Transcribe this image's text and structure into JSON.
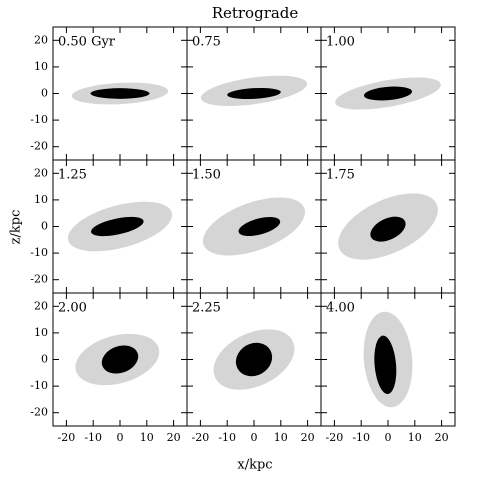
{
  "title": "Retrograde",
  "xlabel": "x/kpc",
  "ylabel": "z/kpc",
  "chart_data": [
    {
      "type": "scatter",
      "label": "0.50 Gyr",
      "xlim": [
        -25,
        25
      ],
      "ylim": [
        -25,
        25
      ],
      "xticks": [
        -20,
        -10,
        0,
        10,
        20
      ],
      "yticks": [
        -20,
        -10,
        0,
        10,
        20
      ],
      "halo": {
        "x": 0,
        "z": 0,
        "rx": 18,
        "rz": 4,
        "angle": 3
      },
      "core": {
        "x": 0,
        "z": 0,
        "rx": 11,
        "rz": 2,
        "angle": 0
      }
    },
    {
      "type": "scatter",
      "label": "0.75",
      "xlim": [
        -25,
        25
      ],
      "ylim": [
        -25,
        25
      ],
      "xticks": [
        -20,
        -10,
        0,
        10,
        20
      ],
      "yticks": [
        -20,
        -10,
        0,
        10,
        20
      ],
      "halo": {
        "x": 0,
        "z": 1,
        "rx": 20,
        "rz": 5,
        "angle": 8
      },
      "core": {
        "x": 0,
        "z": 0,
        "rx": 10,
        "rz": 2,
        "angle": 3
      }
    },
    {
      "type": "scatter",
      "label": "1.00",
      "xlim": [
        -25,
        25
      ],
      "ylim": [
        -25,
        25
      ],
      "xticks": [
        -20,
        -10,
        0,
        10,
        20
      ],
      "yticks": [
        -20,
        -10,
        0,
        10,
        20
      ],
      "halo": {
        "x": 0,
        "z": 0,
        "rx": 20,
        "rz": 5,
        "angle": 10
      },
      "core": {
        "x": 0,
        "z": 0,
        "rx": 9,
        "rz": 2.5,
        "angle": 5
      }
    },
    {
      "type": "scatter",
      "label": "1.25",
      "xlim": [
        -25,
        25
      ],
      "ylim": [
        -25,
        25
      ],
      "xticks": [
        -20,
        -10,
        0,
        10,
        20
      ],
      "yticks": [
        -20,
        -10,
        0,
        10,
        20
      ],
      "halo": {
        "x": 0,
        "z": 0,
        "rx": 20,
        "rz": 8,
        "angle": 15
      },
      "core": {
        "x": -1,
        "z": 0,
        "rx": 10,
        "rz": 3,
        "angle": 12
      }
    },
    {
      "type": "scatter",
      "label": "1.50",
      "xlim": [
        -25,
        25
      ],
      "ylim": [
        -25,
        25
      ],
      "xticks": [
        -20,
        -10,
        0,
        10,
        20
      ],
      "yticks": [
        -20,
        -10,
        0,
        10,
        20
      ],
      "halo": {
        "x": 0,
        "z": 0,
        "rx": 20,
        "rz": 9,
        "angle": 20
      },
      "core": {
        "x": 2,
        "z": 0,
        "rx": 8,
        "rz": 3,
        "angle": 15
      }
    },
    {
      "type": "scatter",
      "label": "1.75",
      "xlim": [
        -25,
        25
      ],
      "ylim": [
        -25,
        25
      ],
      "xticks": [
        -20,
        -10,
        0,
        10,
        20
      ],
      "yticks": [
        -20,
        -10,
        0,
        10,
        20
      ],
      "halo": {
        "x": 0,
        "z": 0,
        "rx": 20,
        "rz": 10,
        "angle": 25
      },
      "core": {
        "x": 0,
        "z": -1,
        "rx": 7,
        "rz": 4,
        "angle": 25
      }
    },
    {
      "type": "scatter",
      "label": "2.00",
      "xlim": [
        -25,
        25
      ],
      "ylim": [
        -25,
        25
      ],
      "xticks": [
        -20,
        -10,
        0,
        10,
        20
      ],
      "yticks": [
        -20,
        -10,
        0,
        10,
        20
      ],
      "halo": {
        "x": -1,
        "z": 0,
        "rx": 16,
        "rz": 9,
        "angle": 15
      },
      "core": {
        "x": 0,
        "z": 0,
        "rx": 7,
        "rz": 5,
        "angle": 20
      }
    },
    {
      "type": "scatter",
      "label": "2.25",
      "xlim": [
        -25,
        25
      ],
      "ylim": [
        -25,
        25
      ],
      "xticks": [
        -20,
        -10,
        0,
        10,
        20
      ],
      "yticks": [
        -20,
        -10,
        0,
        10,
        20
      ],
      "halo": {
        "x": 0,
        "z": 0,
        "rx": 16,
        "rz": 10,
        "angle": 25
      },
      "core": {
        "x": 0,
        "z": 0,
        "rx": 7,
        "rz": 6,
        "angle": 30
      }
    },
    {
      "type": "scatter",
      "label": "4.00",
      "xlim": [
        -25,
        25
      ],
      "ylim": [
        -25,
        25
      ],
      "xticks": [
        -20,
        -10,
        0,
        10,
        20
      ],
      "yticks": [
        -20,
        -10,
        0,
        10,
        20
      ],
      "halo": {
        "x": 0,
        "z": 0,
        "rx": 9,
        "rz": 18,
        "angle": 5
      },
      "core": {
        "x": -1,
        "z": -2,
        "rx": 4,
        "rz": 11,
        "angle": 5
      }
    }
  ]
}
